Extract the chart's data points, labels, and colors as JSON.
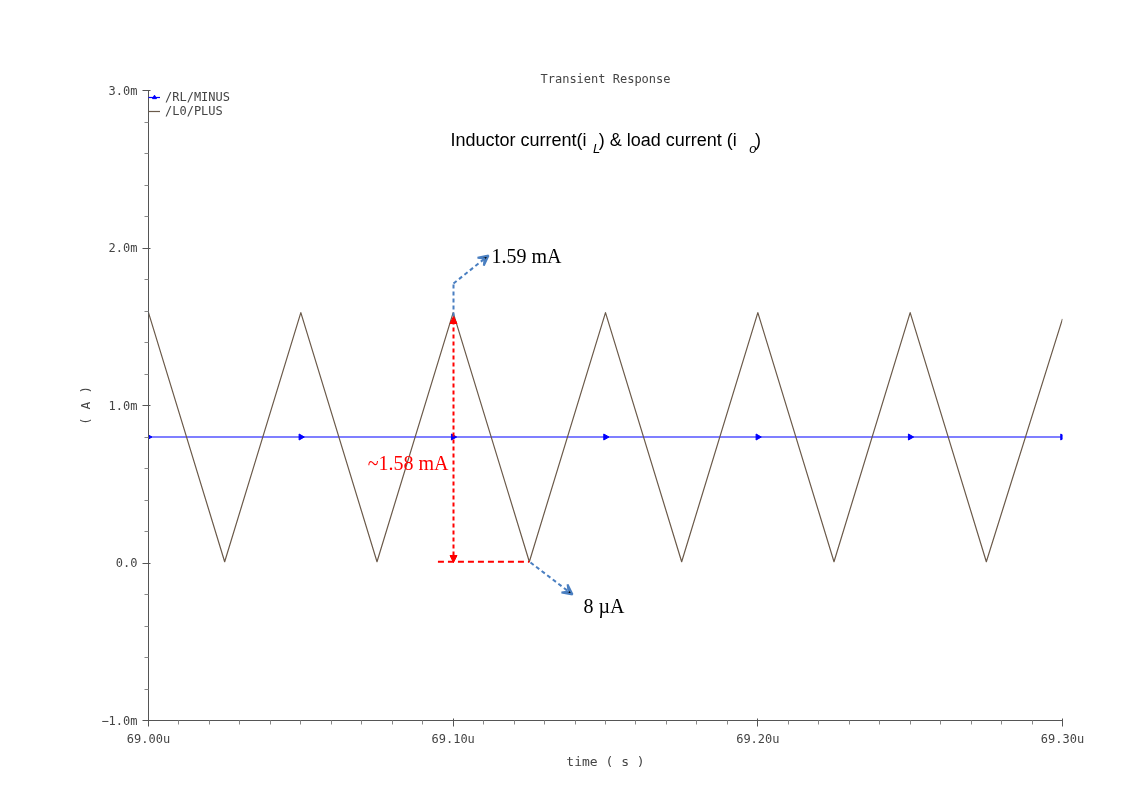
{
  "chart_data": {
    "type": "line",
    "title": "Transient Response",
    "subtitle": "Inductor current(i$_{L}$) & load current (i$_{o}$)",
    "xlabel": "time ( s )",
    "ylabel": "( A )",
    "xlim": [
      69.0,
      69.3
    ],
    "ylim": [
      -1.0,
      3.0
    ],
    "xticks": [
      {
        "value": 69.0,
        "label": "69.00u"
      },
      {
        "value": 69.1,
        "label": "69.10u"
      },
      {
        "value": 69.2,
        "label": "69.20u"
      },
      {
        "value": 69.3,
        "label": "69.30u"
      }
    ],
    "yticks": [
      {
        "value": -1.0,
        "label": "−1.0m"
      },
      {
        "value": 0.0,
        "label": "0.0"
      },
      {
        "value": 1.0,
        "label": "1.0m"
      },
      {
        "value": 2.0,
        "label": "2.0m"
      },
      {
        "value": 3.0,
        "label": "3.0m"
      }
    ],
    "grid": false,
    "legend": "top left",
    "series": [
      {
        "name": "/RL/MINUS",
        "color": "#0000ff",
        "marker": "triangle",
        "x": [
          69.0,
          69.05,
          69.1,
          69.15,
          69.2,
          69.25,
          69.3
        ],
        "values": [
          0.8,
          0.8,
          0.8,
          0.8,
          0.8,
          0.8,
          0.8
        ]
      },
      {
        "name": "/L0/PLUS",
        "color": "#6b5a4a",
        "marker": "none",
        "x": [
          69.0,
          69.025,
          69.05,
          69.075,
          69.1,
          69.125,
          69.15,
          69.175,
          69.2,
          69.225,
          69.25,
          69.275,
          69.3
        ],
        "values": [
          1.59,
          0.008,
          1.59,
          0.008,
          1.59,
          0.008,
          1.59,
          0.008,
          1.59,
          0.008,
          1.59,
          0.008,
          1.55
        ]
      },
      {
        "color": "#ff0000",
        "marker": "none",
        "line_style": "dashed",
        "x": [
          69.095,
          69.125
        ],
        "values": [
          0.008,
          0.008
        ]
      }
    ],
    "annotations": [
      "1.59 mA",
      "~1.58 mA",
      "8 µA"
    ]
  }
}
